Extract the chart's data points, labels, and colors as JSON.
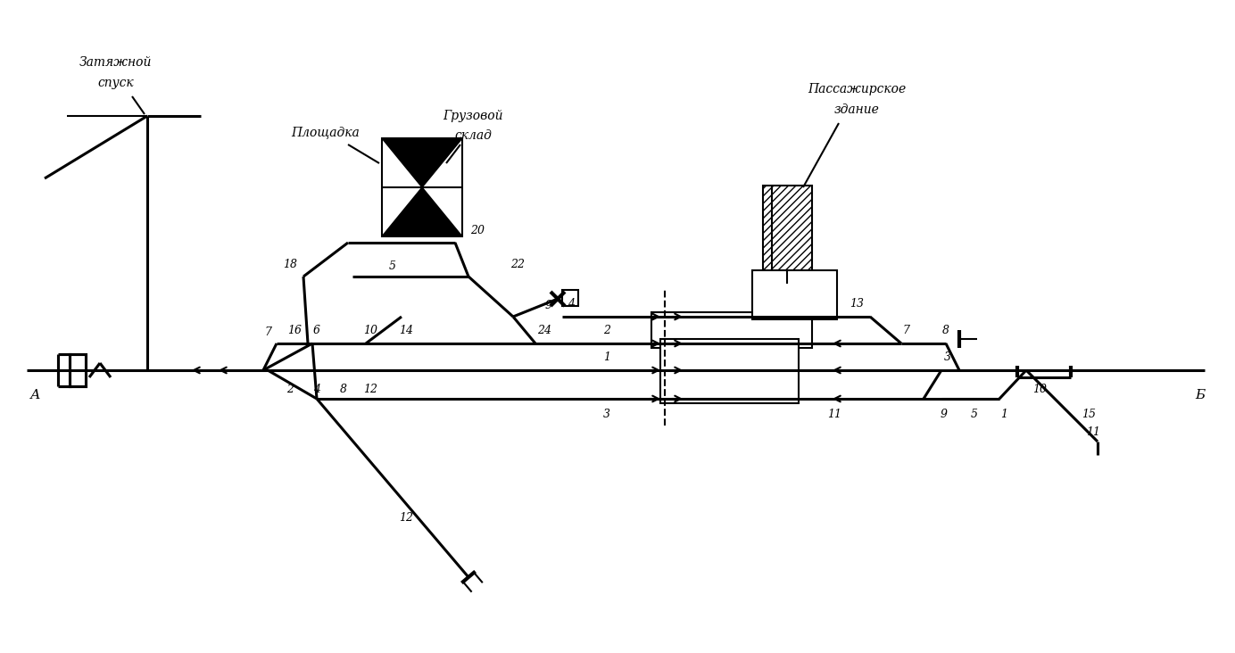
{
  "bg": "#ffffff",
  "lc": "#000000",
  "lw": 1.5,
  "blw": 2.2,
  "fig_w": 13.84,
  "fig_h": 7.32,
  "dpi": 100,
  "labels": {
    "zatjazhnoi": [
      "Затяжной",
      "спуск"
    ],
    "ploschadka": "Площадка",
    "gruzovoi": [
      "Грузовой",
      "склад"
    ],
    "passazhirskoe": [
      "Пассажирское",
      "здание"
    ],
    "A": "А",
    "B": "Б"
  }
}
